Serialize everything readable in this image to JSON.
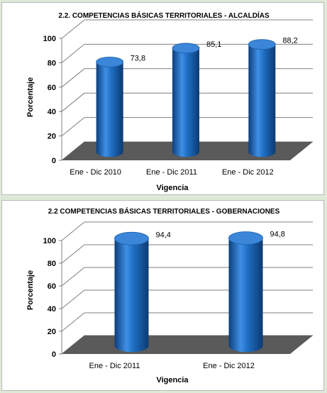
{
  "chart_data": [
    {
      "type": "bar",
      "title": "2.2. COMPETENCIAS BÁSICAS TERRITORIALES - ALCALDÍAS",
      "xlabel": "Vigencia",
      "ylabel": "Porcentaje",
      "categories": [
        "Ene - Dic 2010",
        "Ene - Dic 2011",
        "Ene - Dic 2012"
      ],
      "values": [
        73.8,
        85.1,
        88.2
      ],
      "value_labels": [
        "73,8",
        "85,1",
        "88,2"
      ],
      "yticks": [
        "0",
        "20",
        "40",
        "60",
        "80",
        "100"
      ],
      "ylim": [
        0,
        100
      ],
      "grid": true,
      "bar_color": "#1f6fc4",
      "floor_color": "#5a5a5a"
    },
    {
      "type": "bar",
      "title": "2.2 COMPETENCIAS BÁSICAS TERRITORIALES - GOBERNACIONES",
      "xlabel": "Vigencia",
      "ylabel": "Porcentaje",
      "categories": [
        "Ene - Dic 2011",
        "Ene - Dic 2012"
      ],
      "values": [
        94.4,
        94.8
      ],
      "value_labels": [
        "94,4",
        "94,8"
      ],
      "yticks": [
        "0",
        "20",
        "40",
        "60",
        "80",
        "100"
      ],
      "ylim": [
        0,
        100
      ],
      "grid": true,
      "bar_color": "#1f6fc4",
      "floor_color": "#5a5a5a"
    }
  ]
}
